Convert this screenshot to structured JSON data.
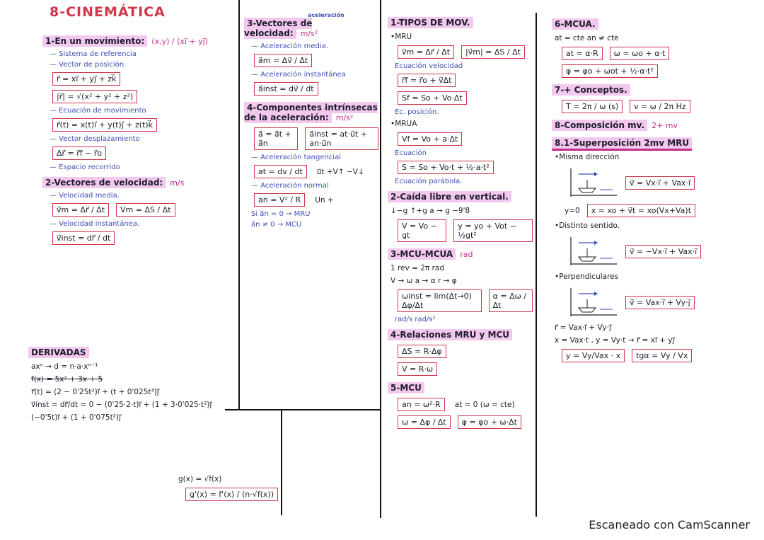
{
  "title": "8-CINEMÁTICA",
  "footer": "Escaneado con CamScanner",
  "colors": {
    "accent_red": "#d0354a",
    "note_blue": "#3d4fb5",
    "highlight_pink": "#f3c8ef"
  },
  "columns": [
    [
      {
        "k": "h",
        "text": "1-En un movimiento:",
        "extra": "(x,y) / (xi⃗ + yj⃗)"
      },
      {
        "k": "n",
        "text": "— Sistema de referencia"
      },
      {
        "k": "n",
        "text": "— Vector de posición."
      },
      {
        "k": "f",
        "items": [
          "r⃗ = xi⃗ + yj⃗ + zk⃗"
        ]
      },
      {
        "k": "f",
        "items": [
          "|r⃗| = √(x² + y² + z²)"
        ]
      },
      {
        "k": "n",
        "text": "— Ecuación de movimiento"
      },
      {
        "k": "f",
        "items": [
          "r⃗(t) = x(t)i⃗ + y(t)j⃗ + z(t)k⃗"
        ]
      },
      {
        "k": "n",
        "text": "— Vector desplazamiento"
      },
      {
        "k": "f",
        "items": [
          "Δr⃗ = r⃗f − r⃗o"
        ]
      },
      {
        "k": "n",
        "text": "— Espacio recorrido"
      },
      {
        "k": "h",
        "text": "2-Vectores de velocidad:",
        "extra": "m/s"
      },
      {
        "k": "n",
        "text": "— Velocidad media."
      },
      {
        "k": "f",
        "items": [
          "v⃗m = Δr⃗ / Δt",
          "Vm = ΔS / Δt"
        ]
      },
      {
        "k": "n",
        "text": "— Velocidad instantánea."
      },
      {
        "k": "f",
        "items": [
          "v⃗inst = dr⃗ / dt"
        ]
      }
    ],
    [
      {
        "k": "h",
        "text": "3-Vectores de velocidad:",
        "extra": "m/s²",
        "note": "aceleración"
      },
      {
        "k": "n",
        "text": "— Aceleración media."
      },
      {
        "k": "f",
        "items": [
          "a⃗m = Δv⃗ / Δt"
        ]
      },
      {
        "k": "n",
        "text": "— Aceleración instantánea"
      },
      {
        "k": "f",
        "items": [
          "a⃗inst = dv⃗ / dt"
        ]
      },
      {
        "k": "h",
        "text": "4-Componentes intrínsecas de la aceleración:",
        "extra": "m/s²"
      },
      {
        "k": "f",
        "items": [
          "a⃗ = a⃗t + a⃗n",
          "a⃗inst = at·u⃗t + an·u⃗n"
        ]
      },
      {
        "k": "n",
        "text": "— Aceleración tangencial"
      },
      {
        "k": "f",
        "items": [
          "at = dv / dt"
        ],
        "after": "u⃗t   +V↑  −V↓"
      },
      {
        "k": "n",
        "text": "— Aceleración normal"
      },
      {
        "k": "f",
        "items": [
          "an = V² / R"
        ],
        "after": "Un   +"
      },
      {
        "k": "n",
        "text": "Si a⃗n = 0 → MRU"
      },
      {
        "k": "n",
        "text": "a⃗n ≠ 0 → MCU"
      }
    ],
    [
      {
        "k": "h",
        "text": "1-TIPOS DE MOV."
      },
      {
        "k": "t",
        "text": "•MRU"
      },
      {
        "k": "f",
        "items": [
          "v⃗m = Δr⃗ / Δt",
          "|v⃗m| = ΔS / Δt"
        ]
      },
      {
        "k": "n",
        "text": "Ecuación velocidad"
      },
      {
        "k": "f",
        "items": [
          "r⃗f = r⃗o + v⃗Δt"
        ]
      },
      {
        "k": "f",
        "items": [
          "Sf = So + Vo·Δt"
        ]
      },
      {
        "k": "n",
        "text": "Ec. posición."
      },
      {
        "k": "t",
        "text": "•MRUA"
      },
      {
        "k": "f",
        "items": [
          "Vf = Vo + a·Δt"
        ]
      },
      {
        "k": "n",
        "text": "Ecuación"
      },
      {
        "k": "f",
        "items": [
          "S = So + Vo·t + ½·a·t²"
        ]
      },
      {
        "k": "n",
        "text": "Ecuación parábola."
      },
      {
        "k": "h",
        "text": "2-Caída libre en vertical."
      },
      {
        "k": "t",
        "text": "↓−g  ↑+g    a → g   −9'8"
      },
      {
        "k": "f",
        "items": [
          "V = Vo − gt",
          "y = yo + Vot − ½gt²"
        ]
      },
      {
        "k": "h",
        "text": "3-MCU-MCUA",
        "extra": "rad"
      },
      {
        "k": "t",
        "text": "1 rev = 2π rad"
      },
      {
        "k": "t",
        "text": "V → ω    a → α    r → φ"
      },
      {
        "k": "f",
        "items": [
          "ωinst = lim(Δt→0) Δφ/Δt",
          "α = Δω / Δt"
        ]
      },
      {
        "k": "n",
        "text": "rad/s          rad/s²"
      },
      {
        "k": "h",
        "text": "4-Relaciones MRU y MCU"
      },
      {
        "k": "f",
        "items": [
          "ΔS = R·Δφ"
        ]
      },
      {
        "k": "f",
        "items": [
          "V = R·ω"
        ]
      },
      {
        "k": "h",
        "text": "5-MCU"
      },
      {
        "k": "f",
        "items": [
          "an = ω²·R"
        ],
        "after": "at = 0 (ω = cte)"
      },
      {
        "k": "f",
        "items": [
          "ω = Δφ / Δt",
          "φ = φo + ω·Δt"
        ]
      }
    ],
    [
      {
        "k": "h",
        "text": "6-MCUA."
      },
      {
        "k": "t",
        "text": "at = cte      an ≠ cte"
      },
      {
        "k": "f",
        "items": [
          "at = α·R",
          "ω = ωo + α·t"
        ]
      },
      {
        "k": "f",
        "items": [
          "φ = φo + ωot + ½·α·t²"
        ]
      },
      {
        "k": "h",
        "text": "7-+ Conceptos."
      },
      {
        "k": "f",
        "items": [
          "T = 2π / ω (s)",
          "ν = ω / 2π  Hz"
        ]
      },
      {
        "k": "h",
        "text": "8-Composición mv.",
        "extra": "2+ mv"
      },
      {
        "k": "h",
        "text": "8.1-Superposición 2mv MRU",
        "under": true
      },
      {
        "k": "t",
        "text": "•Misma dirección"
      },
      {
        "k": "d",
        "items": [
          "v⃗ = Vx·i⃗ + Vax·i⃗"
        ]
      },
      {
        "k": "f",
        "items": [
          "x = xo + v⃗t = xo(Vx+Va)t"
        ],
        "before": "y=0"
      },
      {
        "k": "t",
        "text": "•Distinto sentido."
      },
      {
        "k": "d",
        "items": [
          "v⃗ = −Vx·i⃗ + Vax·i⃗"
        ]
      },
      {
        "k": "t",
        "text": "•Perpendiculares"
      },
      {
        "k": "d",
        "items": [
          "v⃗ = Vax·i⃗ + Vy·j⃗"
        ]
      },
      {
        "k": "t",
        "text": "r⃗ = Vax·i⃗ + Vy·j⃗"
      },
      {
        "k": "t",
        "text": "x = Vax·t ,  y = Vy·t  → r⃗ = xi⃗ + yj⃗"
      },
      {
        "k": "f",
        "items": [
          "y = Vy/Vax · x",
          "tgα = Vy / Vx"
        ]
      }
    ]
  ],
  "derivadas": [
    {
      "k": "h",
      "text": "DERIVADAS"
    },
    {
      "k": "t",
      "text": "axⁿ → d = n·a·xⁿ⁻¹"
    },
    {
      "k": "t",
      "text": "f(x) = 5x² + 3x + 5",
      "strike": true
    },
    {
      "k": "t",
      "text": "r⃗(t) = (2 − 0'25t²)i⃗ + (t + 0'025t³)j⃗"
    },
    {
      "k": "t",
      "text": "v⃗inst = dr⃗/dt = 0 − (0'25·2·t)i⃗ + (1 + 3·0'025·t²)j⃗"
    },
    {
      "k": "t",
      "text": "(−0'5t)i⃗ + (1 + 0'075t²)j⃗"
    }
  ],
  "root_rule": [
    {
      "k": "t",
      "text": "g(x) = √f(x)"
    },
    {
      "k": "f",
      "items": [
        "g'(x) = f'(x) / (n·√f(x))"
      ]
    }
  ]
}
